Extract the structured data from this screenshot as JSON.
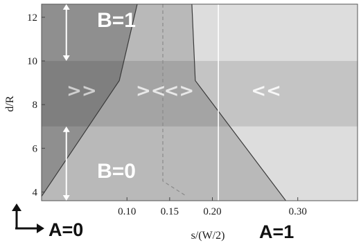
{
  "chart_data": {
    "type": "region-map",
    "xlabel": "s/(W/2)",
    "ylabel": "d/R",
    "xlim": [
      0.0,
      0.37
    ],
    "ylim": [
      3.6,
      12.6
    ],
    "x_ticks": [
      {
        "value": 0.1,
        "label": "0.10"
      },
      {
        "value": 0.15,
        "label": "0.15"
      },
      {
        "value": 0.2,
        "label": "0.20"
      },
      {
        "value": 0.3,
        "label": "0.30"
      }
    ],
    "y_ticks": [
      {
        "value": 4,
        "label": "4"
      },
      {
        "value": 6,
        "label": "6"
      },
      {
        "value": 8,
        "label": "8"
      },
      {
        "value": 10,
        "label": "10"
      },
      {
        "value": 12,
        "label": "12"
      }
    ],
    "bands": [
      {
        "y_from": 7.0,
        "y_to": 10.0
      }
    ],
    "boundaries": [
      {
        "style": "solid",
        "points": [
          [
            0.0,
            3.8
          ],
          [
            0.091,
            9.1
          ],
          [
            0.112,
            12.6
          ]
        ]
      },
      {
        "style": "solid",
        "points": [
          [
            0.176,
            12.6
          ],
          [
            0.18,
            9.1
          ],
          [
            0.286,
            3.6
          ]
        ]
      },
      {
        "style": "dashed",
        "points": [
          [
            0.142,
            12.6
          ],
          [
            0.142,
            4.5
          ],
          [
            0.17,
            3.8
          ]
        ]
      },
      {
        "style": "white-vertical",
        "points": [
          [
            0.207,
            3.6
          ],
          [
            0.207,
            12.6
          ]
        ]
      }
    ],
    "regions": [
      {
        "name": "left",
        "color": "#8f8f8f",
        "marker": ">>"
      },
      {
        "name": "middle-left",
        "color": "#b9b9b9",
        "marker": "><"
      },
      {
        "name": "middle-right",
        "color": "#b9b9b9",
        "marker": "<>"
      },
      {
        "name": "right",
        "color": "#dddddd",
        "marker": "<<"
      }
    ],
    "annotations": [
      {
        "text": "B=1",
        "x": 0.065,
        "y": 11.8
      },
      {
        "text": "B=0",
        "x": 0.065,
        "y": 4.9
      },
      {
        "text": "A=0"
      },
      {
        "text": "A=1"
      }
    ],
    "grid": false,
    "legend": "none"
  }
}
